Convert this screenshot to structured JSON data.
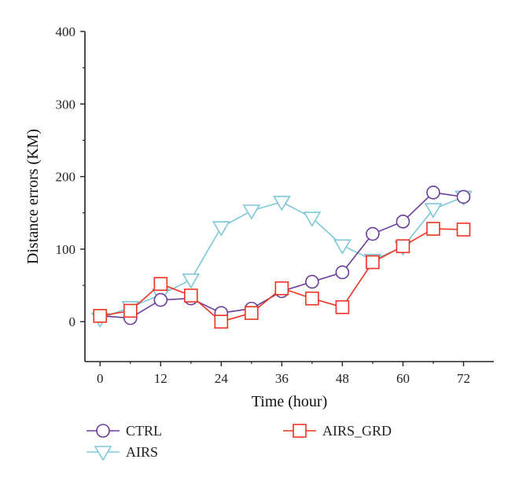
{
  "chart_data": {
    "type": "line",
    "xlabel": "Time (hour)",
    "ylabel": "Distance errors (KM)",
    "xlim": [
      -3,
      78
    ],
    "ylim": [
      -55,
      400
    ],
    "x_ticks": [
      0,
      12,
      24,
      36,
      48,
      60,
      72
    ],
    "y_ticks": [
      0,
      100,
      200,
      300,
      400
    ],
    "grid": false,
    "legend_position": "bottom",
    "series": [
      {
        "name": "CTRL",
        "color": "#6a3d9a",
        "marker": "circle",
        "x": [
          0,
          6,
          12,
          18,
          24,
          30,
          36,
          42,
          48,
          54,
          60,
          66,
          72
        ],
        "y": [
          8,
          5,
          30,
          32,
          12,
          18,
          42,
          55,
          68,
          121,
          138,
          178,
          172
        ]
      },
      {
        "name": "AIRS",
        "color": "#7ec8d8",
        "marker": "triangle-down",
        "x": [
          0,
          6,
          12,
          18,
          24,
          30,
          36,
          42,
          48,
          54,
          60,
          66,
          72
        ],
        "y": [
          4,
          20,
          37,
          58,
          130,
          153,
          165,
          143,
          105,
          85,
          103,
          155,
          172
        ]
      },
      {
        "name": "AIRS_GRD",
        "color": "#ee3322",
        "marker": "square",
        "x": [
          0,
          6,
          12,
          18,
          24,
          30,
          36,
          42,
          48,
          54,
          60,
          66,
          72
        ],
        "y": [
          8,
          15,
          52,
          36,
          0,
          12,
          46,
          32,
          20,
          82,
          104,
          128,
          127
        ]
      }
    ]
  }
}
